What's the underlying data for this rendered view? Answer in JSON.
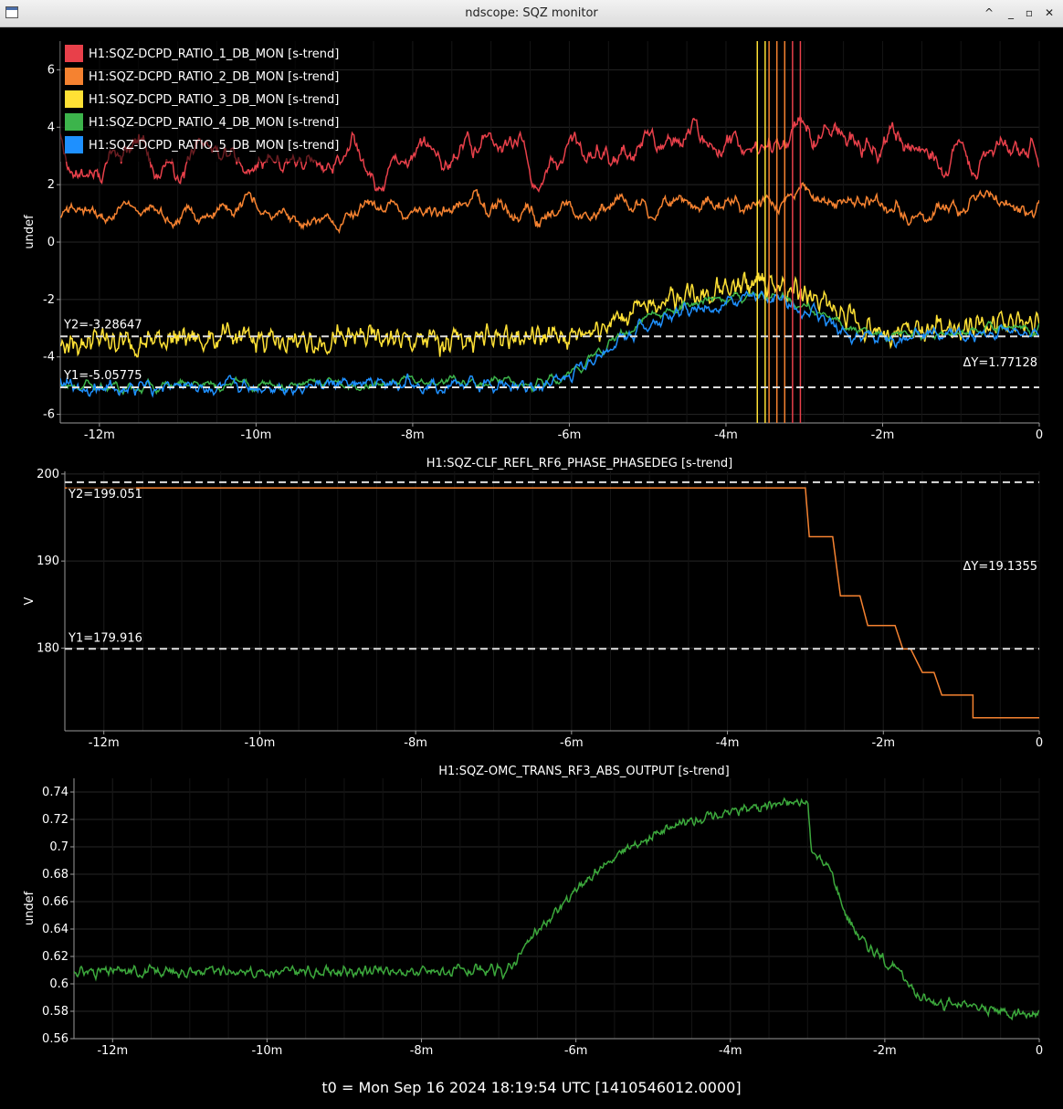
{
  "window": {
    "title": "ndscope: SQZ monitor",
    "buttons": [
      "shade-icon",
      "minimize-icon",
      "maximize-icon",
      "close-icon"
    ]
  },
  "t0_label": "t0 = Mon Sep 16 2024 18:19:54 UTC [1410546012.0000]",
  "colors": {
    "background": "#000000",
    "grid": "#262626",
    "axis": "#9a9a9a",
    "text": "#ffffff",
    "cursor": "#dddddd"
  },
  "chart_data": [
    {
      "type": "line",
      "title": "",
      "ylabel": "undef",
      "xlim": [
        -12.5,
        0
      ],
      "ylim": [
        -6.3,
        7.0
      ],
      "xticks": [
        -12,
        -10,
        -8,
        -6,
        -4,
        -2,
        0
      ],
      "xticklabels": [
        "-12m",
        "-10m",
        "-8m",
        "-6m",
        "-4m",
        "-2m",
        "0"
      ],
      "yticks": [
        6,
        4,
        2,
        0,
        -2,
        -4,
        -6
      ],
      "yticklabels": [
        "6",
        "4",
        "2",
        "0",
        "-2",
        "-4",
        "-6"
      ],
      "grid": true,
      "legend": "top-left",
      "cursors": {
        "y1_label": "Y1=-5.05775",
        "y1": -5.05775,
        "y2_label": "Y2=-3.28647",
        "y2": -3.28647,
        "dy_label": "ΔY=1.77128"
      },
      "series": [
        {
          "name": "H1:SQZ-DCPD_RATIO_1_DB_MON [s-trend]",
          "color": "#e8404a",
          "x": [
            -12.5,
            -12,
            -11.5,
            -11,
            -10.5,
            -10,
            -9.5,
            -9,
            -8.5,
            -8,
            -7.5,
            -7,
            -6.5,
            -6,
            -5.5,
            -5,
            -4.5,
            -4,
            -3.5,
            -3,
            -2.5,
            -2,
            -1.5,
            -1,
            -0.5,
            0
          ],
          "y": [
            3.0,
            2.4,
            3.4,
            2.6,
            3.2,
            2.8,
            2.9,
            3.1,
            2.7,
            3.2,
            2.9,
            3.4,
            3.0,
            3.0,
            3.3,
            3.4,
            3.6,
            3.5,
            3.3,
            3.6,
            3.2,
            3.5,
            3.2,
            3.1,
            3.0,
            3.0
          ]
        },
        {
          "name": "H1:SQZ-DCPD_RATIO_2_DB_MON [s-trend]",
          "color": "#f58230",
          "x": [
            -12.5,
            -12,
            -11.5,
            -11,
            -10.5,
            -10,
            -9.5,
            -9,
            -8.5,
            -8,
            -7.5,
            -7,
            -6.5,
            -6,
            -5.5,
            -5,
            -4.5,
            -4,
            -3.5,
            -3,
            -2.5,
            -2,
            -1.5,
            -1,
            -0.5,
            0
          ],
          "y": [
            1.5,
            1.0,
            1.2,
            0.9,
            1.0,
            1.2,
            1.0,
            0.8,
            1.1,
            0.9,
            1.2,
            1.1,
            0.9,
            1.1,
            1.3,
            1.2,
            1.4,
            1.4,
            1.2,
            1.6,
            1.4,
            1.2,
            1.0,
            1.1,
            1.2,
            1.0
          ]
        },
        {
          "name": "H1:SQZ-DCPD_RATIO_3_DB_MON [s-trend]",
          "color": "#ffe135",
          "x": [
            -12.5,
            -12,
            -11.5,
            -11,
            -10.5,
            -10,
            -9.5,
            -9,
            -8.5,
            -8,
            -7.5,
            -7,
            -6.5,
            -6,
            -5.5,
            -5,
            -4.5,
            -4,
            -3.5,
            -3,
            -2.5,
            -2,
            -1.5,
            -1,
            -0.5,
            0
          ],
          "y": [
            -3.6,
            -3.4,
            -3.5,
            -3.3,
            -3.4,
            -3.3,
            -3.5,
            -3.4,
            -3.3,
            -3.5,
            -3.4,
            -3.3,
            -3.3,
            -3.3,
            -2.8,
            -2.2,
            -1.8,
            -1.6,
            -1.4,
            -1.8,
            -2.6,
            -3.2,
            -3.1,
            -3.0,
            -2.9,
            -2.8
          ]
        },
        {
          "name": "H1:SQZ-DCPD_RATIO_4_DB_MON [s-trend]",
          "color": "#3cb44b",
          "x": [
            -12.5,
            -12,
            -11.5,
            -11,
            -10.5,
            -10,
            -9.5,
            -9,
            -8.5,
            -8,
            -7.5,
            -7,
            -6.5,
            -6,
            -5.5,
            -5,
            -4.5,
            -4,
            -3.5,
            -3,
            -2.5,
            -2,
            -1.5,
            -1,
            -0.5,
            0
          ],
          "y": [
            -5.0,
            -5.0,
            -5.05,
            -5.0,
            -4.95,
            -5.0,
            -4.95,
            -4.9,
            -5.0,
            -4.9,
            -4.85,
            -4.9,
            -4.95,
            -4.6,
            -3.5,
            -2.6,
            -2.2,
            -2.0,
            -1.8,
            -2.2,
            -3.0,
            -3.3,
            -3.2,
            -3.1,
            -3.0,
            -3.0
          ]
        },
        {
          "name": "H1:SQZ-DCPD_RATIO_5_DB_MON [s-trend]",
          "color": "#1e90ff",
          "x": [
            -12.5,
            -12,
            -11.5,
            -11,
            -10.5,
            -10,
            -9.5,
            -9,
            -8.5,
            -8,
            -7.5,
            -7,
            -6.5,
            -6,
            -5.5,
            -5,
            -4.5,
            -4,
            -3.5,
            -3,
            -2.5,
            -2,
            -1.5,
            -1,
            -0.5,
            0
          ],
          "y": [
            -5.0,
            -5.1,
            -5.05,
            -5.0,
            -5.1,
            -5.0,
            -5.05,
            -4.95,
            -5.0,
            -4.9,
            -4.95,
            -5.0,
            -5.05,
            -4.7,
            -3.7,
            -2.8,
            -2.4,
            -2.1,
            -1.9,
            -2.3,
            -3.1,
            -3.4,
            -3.3,
            -3.2,
            -3.2,
            -3.3
          ]
        }
      ]
    },
    {
      "type": "line",
      "title": "H1:SQZ-CLF_REFL_RF6_PHASE_PHASEDEG [s-trend]",
      "ylabel": "V",
      "xlim": [
        -12.5,
        0
      ],
      "ylim": [
        170.5,
        200.3
      ],
      "xticks": [
        -12,
        -10,
        -8,
        -6,
        -4,
        -2,
        0
      ],
      "xticklabels": [
        "-12m",
        "-10m",
        "-8m",
        "-6m",
        "-4m",
        "-2m",
        "0"
      ],
      "yticks": [
        200,
        190,
        180
      ],
      "yticklabels": [
        "200",
        "190",
        "180"
      ],
      "grid": true,
      "cursors": {
        "y1_label": "Y1=179.916",
        "y1": 179.916,
        "y2_label": "Y2=199.051",
        "y2": 199.051,
        "dy_label": "ΔY=19.1355"
      },
      "series": [
        {
          "name": "H1:SQZ-CLF_REFL_RF6_PHASE_PHASEDEG [s-trend]",
          "color": "#f58230",
          "x": [
            -12.5,
            -3.0,
            -2.95,
            -2.65,
            -2.55,
            -2.3,
            -2.2,
            -1.85,
            -1.75,
            -1.65,
            -1.5,
            -1.35,
            -1.25,
            -0.85,
            -0.85,
            0
          ],
          "y": [
            198.4,
            198.4,
            192.8,
            192.8,
            186.0,
            186.0,
            182.6,
            182.6,
            179.9,
            179.9,
            177.2,
            177.2,
            174.6,
            174.6,
            172.0,
            172.0
          ]
        }
      ]
    },
    {
      "type": "line",
      "title": "H1:SQZ-OMC_TRANS_RF3_ABS_OUTPUT [s-trend]",
      "ylabel": "undef",
      "xlim": [
        -12.5,
        0
      ],
      "ylim": [
        0.56,
        0.75
      ],
      "xticks": [
        -12,
        -10,
        -8,
        -6,
        -4,
        -2,
        0
      ],
      "xticklabels": [
        "-12m",
        "-10m",
        "-8m",
        "-6m",
        "-4m",
        "-2m",
        "0"
      ],
      "yticks": [
        0.74,
        0.72,
        0.7,
        0.68,
        0.66,
        0.64,
        0.62,
        0.6,
        0.58,
        0.56
      ],
      "yticklabels": [
        "0.74",
        "0.72",
        "0.7",
        "0.68",
        "0.66",
        "0.64",
        "0.62",
        "0.6",
        "0.58",
        "0.56"
      ],
      "grid": true,
      "series": [
        {
          "name": "H1:SQZ-OMC_TRANS_RF3_ABS_OUTPUT [s-trend]",
          "color": "#3ca83c",
          "x": [
            -12.5,
            -11,
            -10,
            -9,
            -8,
            -7.5,
            -7,
            -6.9,
            -6.5,
            -6,
            -5.5,
            -5,
            -4.5,
            -4,
            -3.5,
            -3.0,
            -2.95,
            -2.7,
            -2.5,
            -2.3,
            -2.0,
            -1.7,
            -1.6,
            -1.5,
            -1.0,
            -0.5,
            0
          ],
          "y": [
            0.609,
            0.609,
            0.609,
            0.609,
            0.609,
            0.609,
            0.609,
            0.609,
            0.638,
            0.668,
            0.693,
            0.709,
            0.719,
            0.726,
            0.731,
            0.733,
            0.697,
            0.683,
            0.65,
            0.632,
            0.617,
            0.603,
            0.592,
            0.589,
            0.584,
            0.58,
            0.578
          ]
        }
      ]
    }
  ]
}
